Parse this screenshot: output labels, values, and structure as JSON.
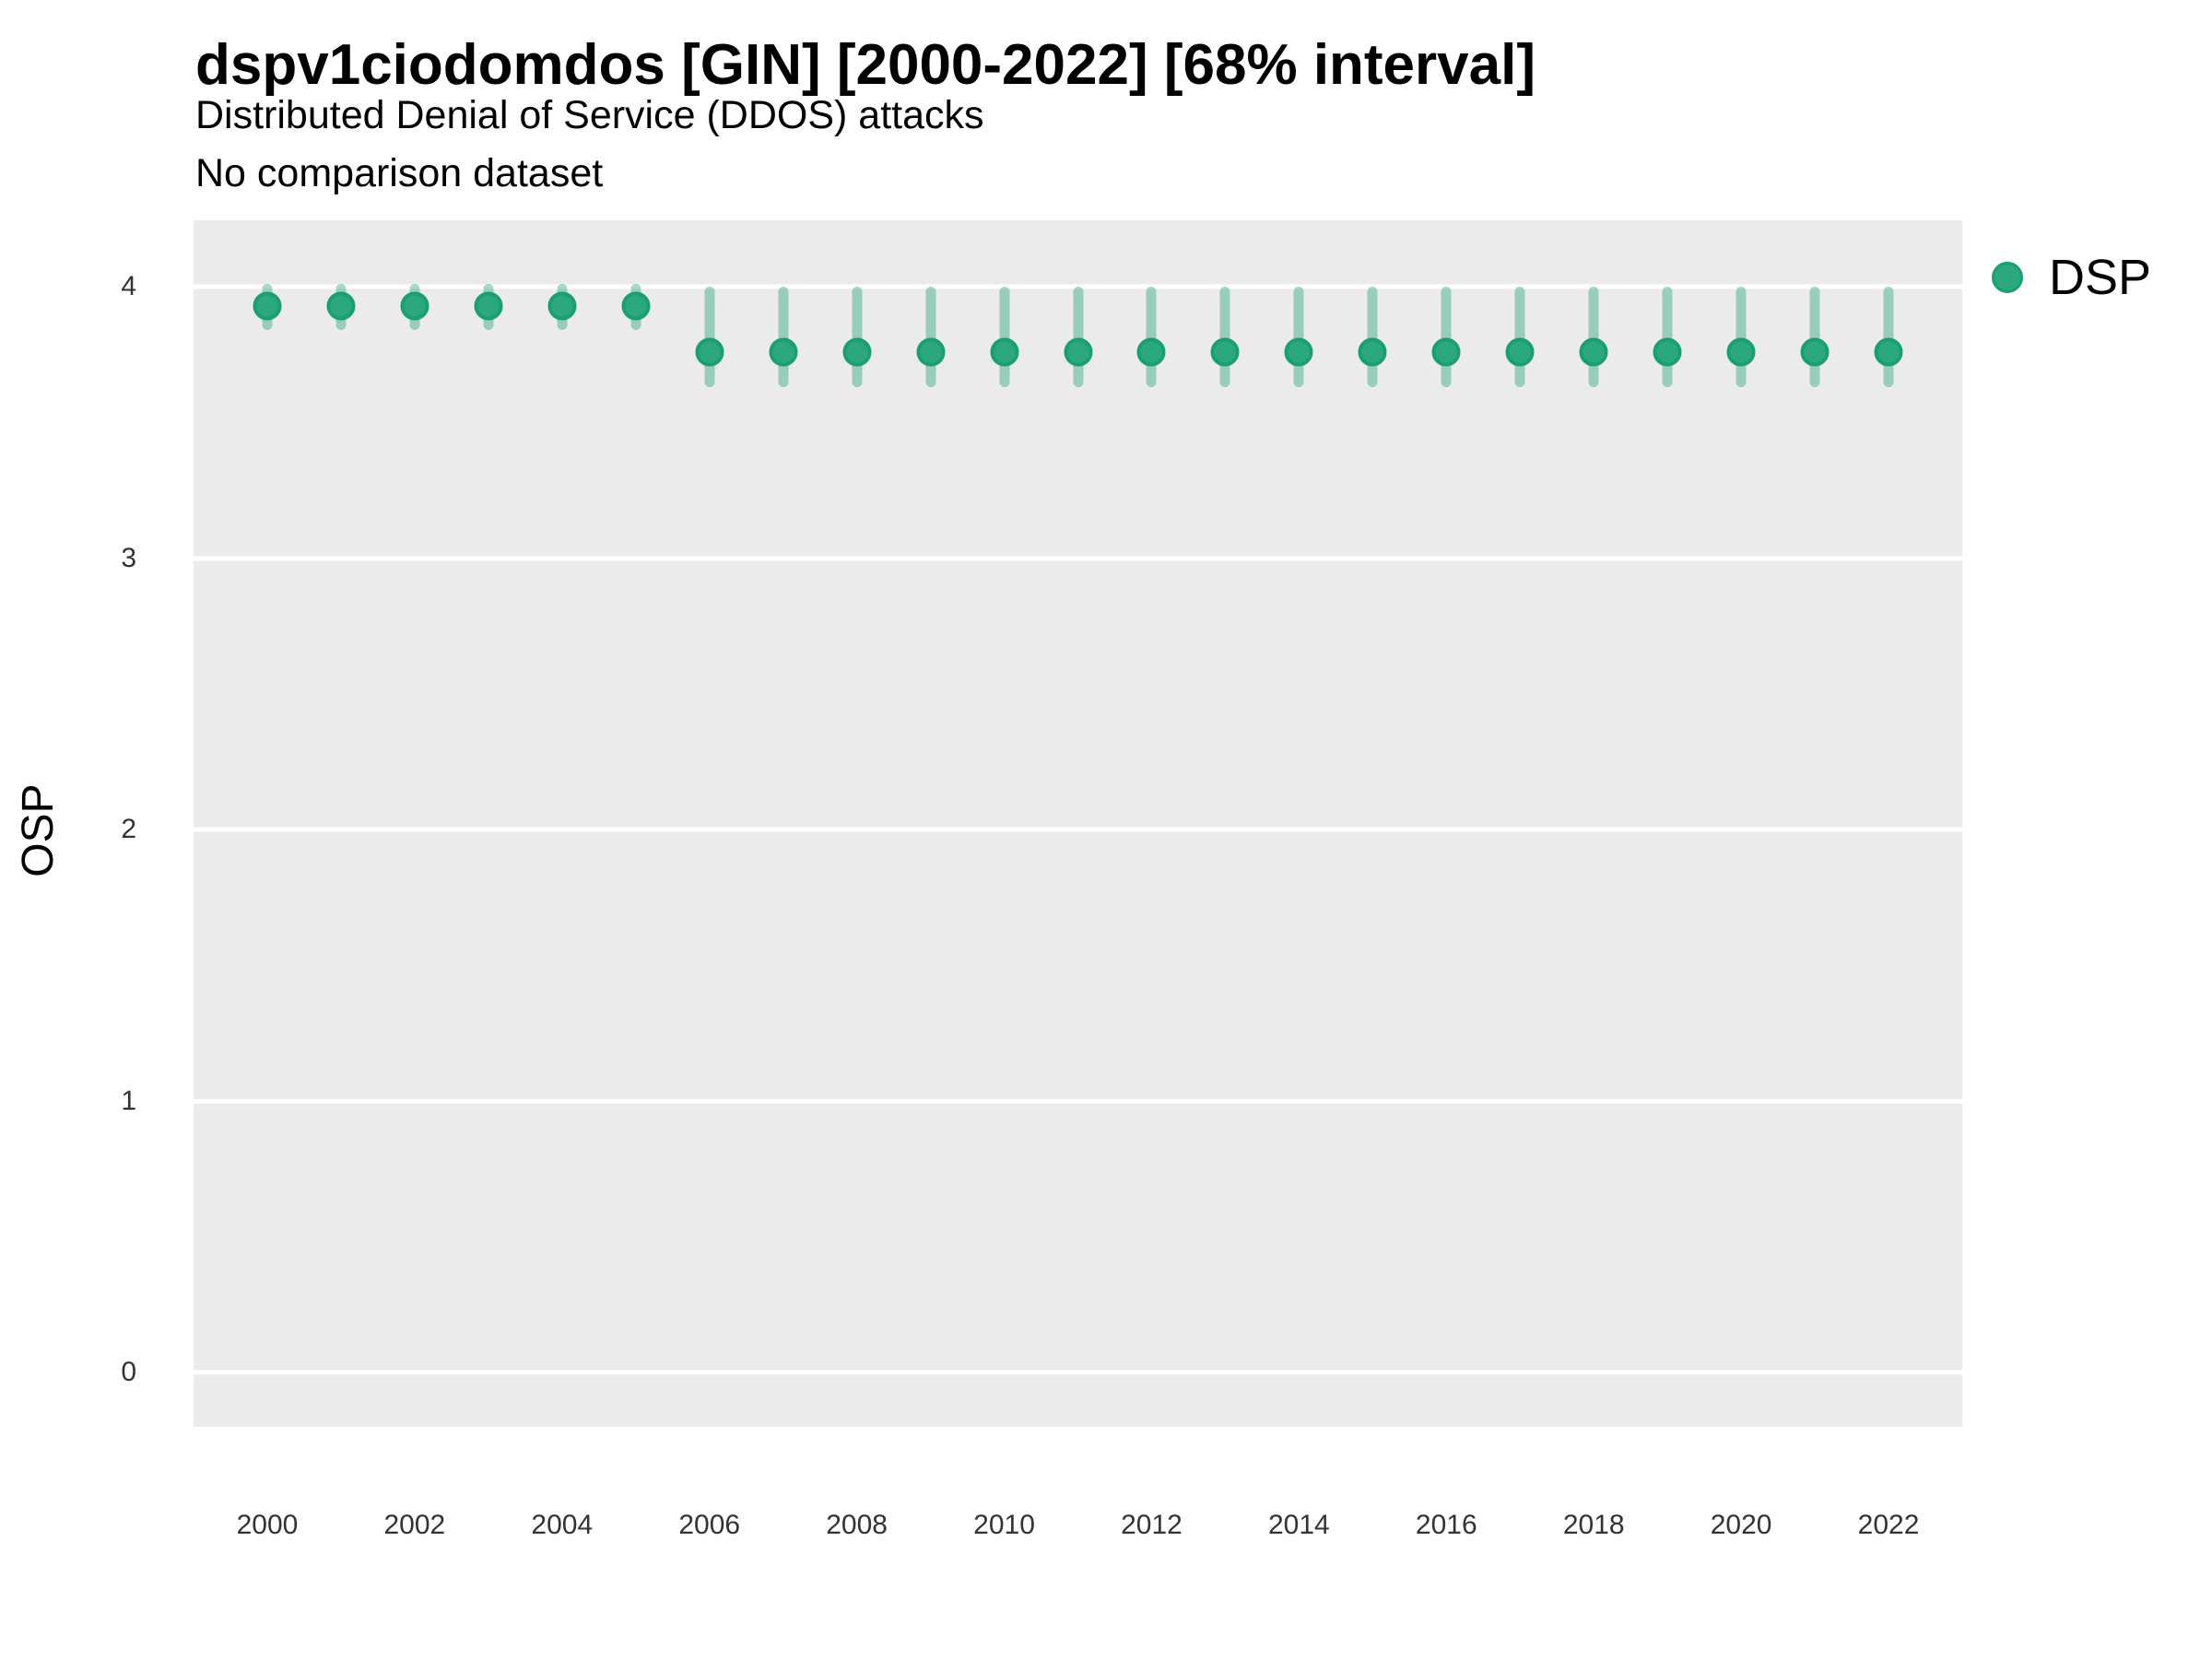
{
  "chart_data": {
    "type": "scatter",
    "title": "dspv1ciodomdos [GIN] [2000-2022] [68% interval]",
    "subtitle": "Distributed Denial of Service (DDOS) attacks",
    "caption": "No comparison dataset",
    "xlabel": "",
    "ylabel": "OSP",
    "interval": "68%",
    "grid": "horizontal-major-only",
    "legend_position": "right",
    "xlim": [
      1999,
      2023
    ],
    "ylim": [
      -0.2,
      4.245
    ],
    "xticks": [
      2000,
      2002,
      2004,
      2006,
      2008,
      2010,
      2012,
      2014,
      2016,
      2018,
      2020,
      2022
    ],
    "yticks": [
      0,
      1,
      2,
      3,
      4
    ],
    "x": [
      2000,
      2001,
      2002,
      2003,
      2004,
      2005,
      2006,
      2007,
      2008,
      2009,
      2010,
      2011,
      2012,
      2013,
      2014,
      2015,
      2016,
      2017,
      2018,
      2019,
      2020,
      2021,
      2022
    ],
    "series": [
      {
        "name": "DSP",
        "values": [
          3.93,
          3.93,
          3.93,
          3.93,
          3.93,
          3.93,
          3.76,
          3.76,
          3.76,
          3.76,
          3.76,
          3.76,
          3.76,
          3.76,
          3.76,
          3.76,
          3.76,
          3.76,
          3.76,
          3.76,
          3.76,
          3.76,
          3.76
        ],
        "lower_68": [
          3.84,
          3.84,
          3.84,
          3.84,
          3.84,
          3.84,
          3.63,
          3.63,
          3.63,
          3.63,
          3.63,
          3.63,
          3.63,
          3.63,
          3.63,
          3.63,
          3.63,
          3.63,
          3.63,
          3.63,
          3.63,
          3.63,
          3.63
        ],
        "upper_68": [
          4.01,
          4.01,
          4.01,
          4.01,
          4.01,
          4.01,
          4.0,
          4.0,
          4.0,
          4.0,
          4.0,
          4.0,
          4.0,
          4.0,
          4.0,
          4.0,
          4.0,
          4.0,
          4.0,
          4.0,
          4.0,
          4.0,
          4.0
        ]
      }
    ]
  },
  "style": {
    "panel_bg": "#EBEBEB",
    "gridline": "#FFFFFF",
    "point_fill": "#2CA87D",
    "point_border": "#1B9E77",
    "interval_color": "rgba(27,158,119,0.40)",
    "tick_text": "#333333",
    "text": "#000000"
  }
}
